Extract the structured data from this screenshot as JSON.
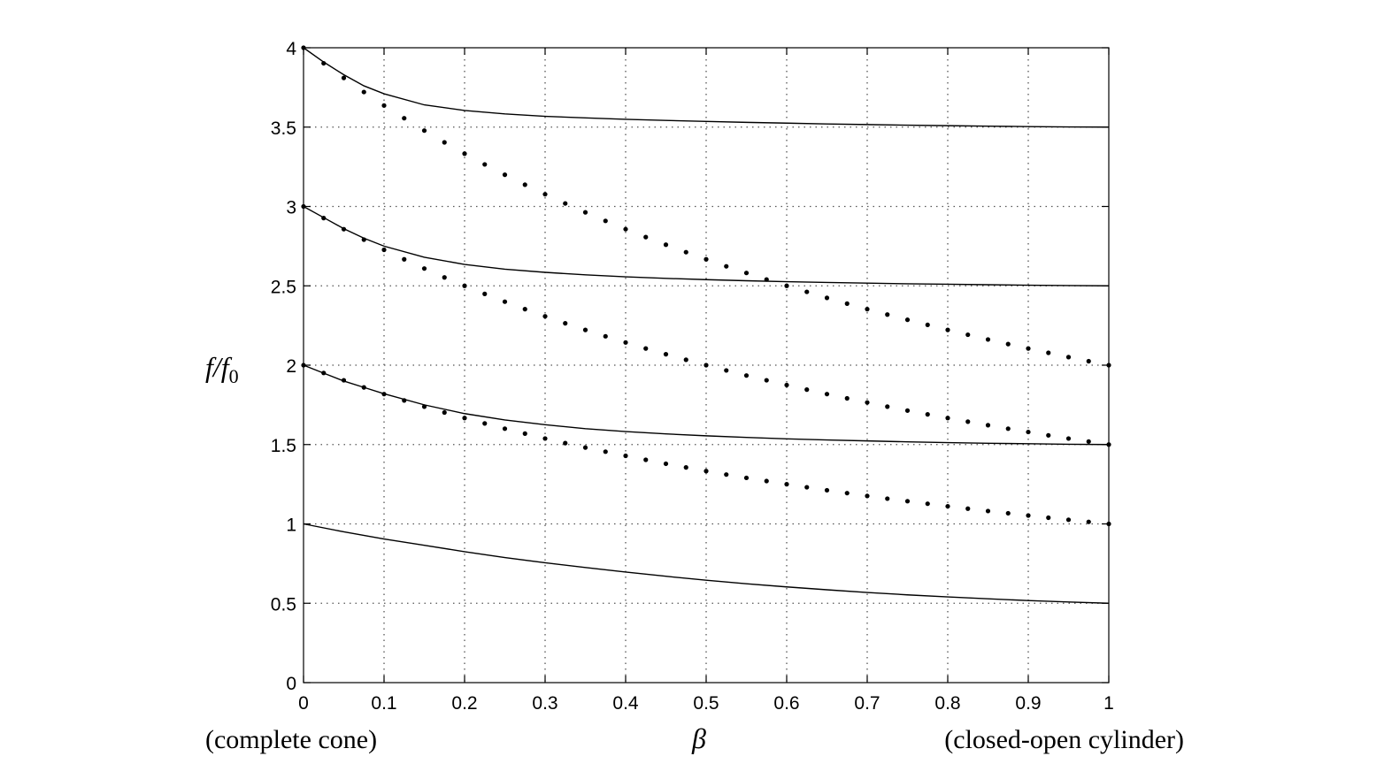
{
  "chart_data": {
    "type": "line",
    "title": "",
    "xlabel": "β",
    "ylabel": "f/f0",
    "xlabel_left_note": "(complete cone)",
    "xlabel_right_note": "(closed-open cylinder)",
    "xlim": [
      0,
      1
    ],
    "ylim": [
      0,
      4
    ],
    "xticks": [
      "0",
      "0.1",
      "0.2",
      "0.3",
      "0.4",
      "0.5",
      "0.6",
      "0.7",
      "0.8",
      "0.9",
      "1"
    ],
    "yticks": [
      "0",
      "0.5",
      "1",
      "1.5",
      "2",
      "2.5",
      "3",
      "3.5",
      "4"
    ],
    "grid": true,
    "series": [
      {
        "style": "solid",
        "x": [
          0,
          0.05,
          0.1,
          0.15,
          0.2,
          0.25,
          0.3,
          0.35,
          0.4,
          0.45,
          0.5,
          0.55,
          0.6,
          0.65,
          0.7,
          0.75,
          0.8,
          0.85,
          0.9,
          0.95,
          1
        ],
        "y": [
          1.0,
          0.95,
          0.905,
          0.865,
          0.825,
          0.788,
          0.755,
          0.725,
          0.697,
          0.67,
          0.645,
          0.623,
          0.603,
          0.585,
          0.568,
          0.553,
          0.54,
          0.528,
          0.517,
          0.508,
          0.5
        ]
      },
      {
        "style": "solid",
        "x": [
          0,
          0.025,
          0.05,
          0.075,
          0.1,
          0.15,
          0.2,
          0.25,
          0.3,
          0.35,
          0.4,
          0.45,
          0.5,
          0.55,
          0.6,
          0.65,
          0.7,
          0.75,
          0.8,
          0.85,
          0.9,
          0.95,
          1
        ],
        "y": [
          2.0,
          1.95,
          1.9,
          1.86,
          1.82,
          1.75,
          1.695,
          1.655,
          1.625,
          1.6,
          1.582,
          1.567,
          1.555,
          1.545,
          1.536,
          1.529,
          1.523,
          1.517,
          1.512,
          1.508,
          1.505,
          1.502,
          1.5
        ]
      },
      {
        "style": "solid",
        "x": [
          0,
          0.025,
          0.05,
          0.075,
          0.1,
          0.15,
          0.2,
          0.25,
          0.3,
          0.35,
          0.4,
          0.45,
          0.5,
          0.55,
          0.6,
          0.65,
          0.7,
          0.75,
          0.8,
          0.85,
          0.9,
          0.95,
          1
        ],
        "y": [
          3.0,
          2.93,
          2.86,
          2.8,
          2.75,
          2.68,
          2.635,
          2.605,
          2.585,
          2.569,
          2.557,
          2.547,
          2.539,
          2.532,
          2.526,
          2.521,
          2.517,
          2.513,
          2.51,
          2.507,
          2.504,
          2.502,
          2.5
        ]
      },
      {
        "style": "solid",
        "x": [
          0,
          0.025,
          0.05,
          0.075,
          0.1,
          0.15,
          0.2,
          0.25,
          0.3,
          0.35,
          0.4,
          0.45,
          0.5,
          0.55,
          0.6,
          0.65,
          0.7,
          0.75,
          0.8,
          0.85,
          0.9,
          0.95,
          1
        ],
        "y": [
          4.0,
          3.91,
          3.83,
          3.76,
          3.71,
          3.64,
          3.605,
          3.583,
          3.568,
          3.558,
          3.549,
          3.542,
          3.536,
          3.53,
          3.525,
          3.52,
          3.516,
          3.512,
          3.509,
          3.506,
          3.503,
          3.501,
          3.5
        ]
      },
      {
        "style": "dotted",
        "x": [
          0,
          0.025,
          0.05,
          0.075,
          0.1,
          0.125,
          0.15,
          0.175,
          0.2,
          0.225,
          0.25,
          0.275,
          0.3,
          0.325,
          0.35,
          0.375,
          0.4,
          0.425,
          0.45,
          0.475,
          0.5,
          0.525,
          0.55,
          0.575,
          0.6,
          0.625,
          0.65,
          0.675,
          0.7,
          0.725,
          0.75,
          0.775,
          0.8,
          0.825,
          0.85,
          0.875,
          0.9,
          0.925,
          0.95,
          0.975,
          1
        ],
        "y": [
          2.0,
          1.951,
          1.905,
          1.86,
          1.818,
          1.778,
          1.739,
          1.702,
          1.667,
          1.633,
          1.6,
          1.569,
          1.538,
          1.509,
          1.481,
          1.455,
          1.429,
          1.404,
          1.379,
          1.356,
          1.333,
          1.311,
          1.29,
          1.27,
          1.25,
          1.231,
          1.212,
          1.194,
          1.176,
          1.159,
          1.143,
          1.127,
          1.111,
          1.096,
          1.081,
          1.067,
          1.053,
          1.039,
          1.026,
          1.013,
          1.0
        ]
      },
      {
        "style": "dotted",
        "x": [
          0,
          0.025,
          0.05,
          0.075,
          0.1,
          0.125,
          0.15,
          0.175,
          0.2,
          0.225,
          0.25,
          0.275,
          0.3,
          0.325,
          0.35,
          0.375,
          0.4,
          0.425,
          0.45,
          0.475,
          0.5,
          0.525,
          0.55,
          0.575,
          0.6,
          0.625,
          0.65,
          0.675,
          0.7,
          0.725,
          0.75,
          0.775,
          0.8,
          0.825,
          0.85,
          0.875,
          0.9,
          0.925,
          0.95,
          0.975,
          1
        ],
        "y": [
          3.0,
          2.927,
          2.857,
          2.791,
          2.727,
          2.667,
          2.609,
          2.553,
          2.5,
          2.449,
          2.4,
          2.353,
          2.308,
          2.264,
          2.222,
          2.182,
          2.143,
          2.105,
          2.069,
          2.034,
          2.0,
          1.967,
          1.935,
          1.905,
          1.875,
          1.846,
          1.818,
          1.791,
          1.765,
          1.739,
          1.714,
          1.69,
          1.667,
          1.644,
          1.622,
          1.6,
          1.579,
          1.558,
          1.538,
          1.519,
          1.5
        ]
      },
      {
        "style": "dotted",
        "x": [
          0,
          0.025,
          0.05,
          0.075,
          0.1,
          0.125,
          0.15,
          0.175,
          0.2,
          0.225,
          0.25,
          0.275,
          0.3,
          0.325,
          0.35,
          0.375,
          0.4,
          0.425,
          0.45,
          0.475,
          0.5,
          0.525,
          0.55,
          0.575,
          0.6,
          0.625,
          0.65,
          0.675,
          0.7,
          0.725,
          0.75,
          0.775,
          0.8,
          0.825,
          0.85,
          0.875,
          0.9,
          0.925,
          0.95,
          0.975,
          1
        ],
        "y": [
          4.0,
          3.902,
          3.81,
          3.721,
          3.636,
          3.556,
          3.478,
          3.404,
          3.333,
          3.265,
          3.2,
          3.137,
          3.077,
          3.019,
          2.963,
          2.909,
          2.857,
          2.807,
          2.759,
          2.712,
          2.667,
          2.623,
          2.581,
          2.54,
          2.5,
          2.462,
          2.424,
          2.388,
          2.353,
          2.319,
          2.286,
          2.254,
          2.222,
          2.192,
          2.162,
          2.133,
          2.105,
          2.078,
          2.051,
          2.025,
          2.0
        ]
      }
    ]
  }
}
